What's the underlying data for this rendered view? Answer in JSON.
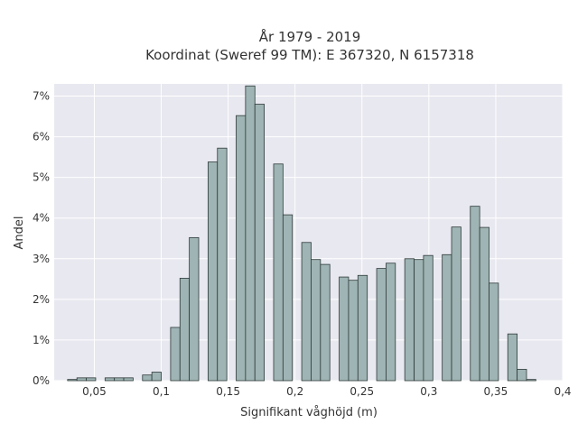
{
  "chart_data": {
    "type": "bar",
    "title": "År 1979 - 2019",
    "subtitle": "Koordinat (Sweref 99 TM): E 367320, N 6157318",
    "xlabel": "Signifikant våghöjd (m)",
    "ylabel": "Andel",
    "xlim": [
      0.02,
      0.4
    ],
    "ylim": [
      0,
      7.3
    ],
    "x_ticks": [
      {
        "value": 0.05,
        "label": "0,05"
      },
      {
        "value": 0.1,
        "label": "0,1"
      },
      {
        "value": 0.15,
        "label": "0,15"
      },
      {
        "value": 0.2,
        "label": "0,2"
      },
      {
        "value": 0.25,
        "label": "0,25"
      },
      {
        "value": 0.3,
        "label": "0,3"
      },
      {
        "value": 0.35,
        "label": "0,35"
      },
      {
        "value": 0.4,
        "label": "0,4"
      }
    ],
    "y_ticks": [
      {
        "value": 0,
        "label": "0%"
      },
      {
        "value": 1,
        "label": "1%"
      },
      {
        "value": 2,
        "label": "2%"
      },
      {
        "value": 3,
        "label": "3%"
      },
      {
        "value": 4,
        "label": "4%"
      },
      {
        "value": 5,
        "label": "5%"
      },
      {
        "value": 6,
        "label": "6%"
      },
      {
        "value": 7,
        "label": "7%"
      }
    ],
    "grid": true,
    "bin_width": 0.007,
    "bars": [
      {
        "x": 0.0335,
        "value": 0.03
      },
      {
        "x": 0.0405,
        "value": 0.07
      },
      {
        "x": 0.0475,
        "value": 0.07
      },
      {
        "x": 0.0615,
        "value": 0.07
      },
      {
        "x": 0.0685,
        "value": 0.07
      },
      {
        "x": 0.0755,
        "value": 0.07
      },
      {
        "x": 0.0895,
        "value": 0.14
      },
      {
        "x": 0.0965,
        "value": 0.21
      },
      {
        "x": 0.1105,
        "value": 1.31
      },
      {
        "x": 0.1175,
        "value": 2.52
      },
      {
        "x": 0.1245,
        "value": 3.52
      },
      {
        "x": 0.1385,
        "value": 5.38
      },
      {
        "x": 0.1455,
        "value": 5.72
      },
      {
        "x": 0.1595,
        "value": 6.52
      },
      {
        "x": 0.1665,
        "value": 7.25
      },
      {
        "x": 0.1735,
        "value": 6.8
      },
      {
        "x": 0.1875,
        "value": 5.33
      },
      {
        "x": 0.1945,
        "value": 4.08
      },
      {
        "x": 0.2085,
        "value": 3.4
      },
      {
        "x": 0.2155,
        "value": 2.98
      },
      {
        "x": 0.2225,
        "value": 2.86
      },
      {
        "x": 0.2365,
        "value": 2.55
      },
      {
        "x": 0.2435,
        "value": 2.47
      },
      {
        "x": 0.2505,
        "value": 2.59
      },
      {
        "x": 0.2645,
        "value": 2.76
      },
      {
        "x": 0.2715,
        "value": 2.89
      },
      {
        "x": 0.2855,
        "value": 3.0
      },
      {
        "x": 0.2925,
        "value": 2.98
      },
      {
        "x": 0.2995,
        "value": 3.08
      },
      {
        "x": 0.3135,
        "value": 3.1
      },
      {
        "x": 0.3205,
        "value": 3.78
      },
      {
        "x": 0.3345,
        "value": 4.29
      },
      {
        "x": 0.3415,
        "value": 3.77
      },
      {
        "x": 0.3485,
        "value": 2.4
      },
      {
        "x": 0.3625,
        "value": 1.15
      },
      {
        "x": 0.3695,
        "value": 0.28
      },
      {
        "x": 0.3765,
        "value": 0.03
      }
    ],
    "bar_color": "#9fb4b4",
    "bar_edge_color": "#2e3a3a",
    "plot_background": "#e8e8f0",
    "grid_color": "#ffffff"
  }
}
